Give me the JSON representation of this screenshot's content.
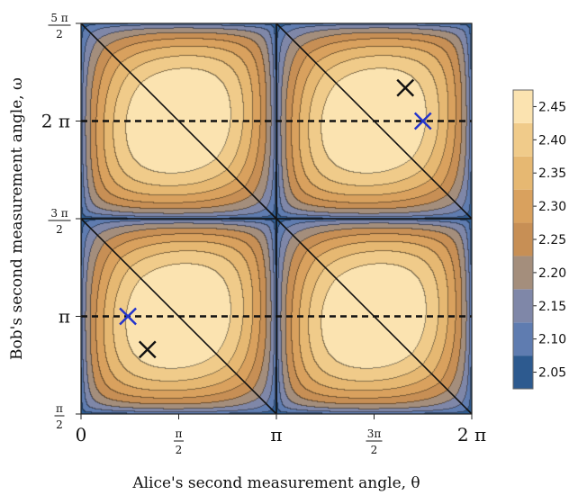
{
  "chart_data": {
    "type": "heatmap",
    "subtype": "contour",
    "title": "",
    "xlabel": "Alice's second measurement angle, θ",
    "ylabel": "Bob's second measurement angle, ω",
    "x_range_over_pi": [
      0,
      2
    ],
    "y_range_over_pi": [
      0.5,
      2.5
    ],
    "x_ticks": [
      {
        "value_over_pi": 0,
        "label": "0"
      },
      {
        "value_over_pi": 0.5,
        "num": "π",
        "den": "2"
      },
      {
        "value_over_pi": 1,
        "label": "π"
      },
      {
        "value_over_pi": 1.5,
        "num": "3π",
        "den": "2"
      },
      {
        "value_over_pi": 2,
        "label": "2 π"
      }
    ],
    "y_ticks": [
      {
        "value_over_pi": 0.5,
        "num": "π",
        "den": "2"
      },
      {
        "value_over_pi": 1,
        "label": "π"
      },
      {
        "value_over_pi": 1.5,
        "num": "3 π",
        "den": "2"
      },
      {
        "value_over_pi": 2,
        "label": "2 π"
      },
      {
        "value_over_pi": 2.5,
        "num": "5 π",
        "den": "2"
      }
    ],
    "colorbar": {
      "levels": [
        2.05,
        2.1,
        2.15,
        2.2,
        2.25,
        2.3,
        2.35,
        2.4,
        2.45
      ],
      "labels": [
        "2.05",
        "2.10",
        "2.15",
        "2.20",
        "2.25",
        "2.30",
        "2.35",
        "2.40",
        "2.45"
      ],
      "colors": [
        "#2d5a8f",
        "#5f7cb0",
        "#7f87a8",
        "#a48e7c",
        "#c78f55",
        "#d9a15e",
        "#e6b872",
        "#f0cb8a",
        "#fbe3b0"
      ]
    },
    "value_range": [
      2.0,
      2.48
    ],
    "grid_lines_over_pi": {
      "x": [
        1
      ],
      "y": [
        1.5
      ]
    },
    "diagonals": "x + y = c in each quadrant",
    "dashed_lines_y_over_pi": [
      1,
      2
    ],
    "markers": [
      {
        "label": "×",
        "color": "#111111",
        "x_over_pi": 1.66,
        "y_over_pi": 2.17
      },
      {
        "label": "×",
        "color": "#2233cc",
        "x_over_pi": 1.75,
        "y_over_pi": 2.0
      },
      {
        "label": "×",
        "color": "#2233cc",
        "x_over_pi": 0.24,
        "y_over_pi": 1.0
      },
      {
        "label": "×",
        "color": "#111111",
        "x_over_pi": 0.34,
        "y_over_pi": 0.83
      }
    ]
  }
}
